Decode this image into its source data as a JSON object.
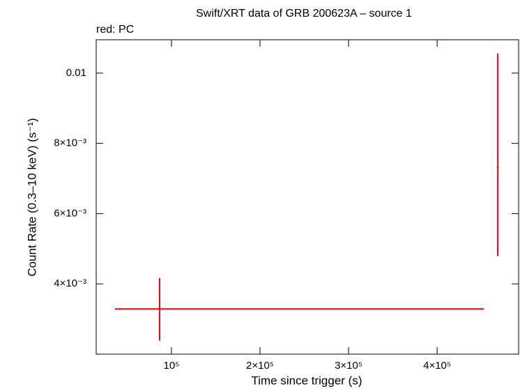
{
  "chart_data": {
    "type": "errorbar",
    "title": "Swift/XRT data of GRB 200623A – source 1",
    "annotation": "red: PC",
    "x_label": "Time since trigger (s)",
    "y_label": "Count Rate (0.3–10 keV) (s⁻¹)",
    "xlim": [
      15000,
      492000
    ],
    "ylim": [
      0.002,
      0.01095
    ],
    "xticks": [
      {
        "value": 100000,
        "label": "10⁵"
      },
      {
        "value": 200000,
        "label": "2×10⁵"
      },
      {
        "value": 300000,
        "label": "3×10⁵"
      },
      {
        "value": 400000,
        "label": "4×10⁵"
      }
    ],
    "yticks": [
      {
        "value": 0.004,
        "label": "4×10⁻³"
      },
      {
        "value": 0.006,
        "label": "6×10⁻³"
      },
      {
        "value": 0.008,
        "label": "8×10⁻³"
      },
      0.01
    ],
    "series": [
      {
        "name": "PC",
        "color": "#e8000b",
        "x": [
          86600,
          468500
        ],
        "x_err_minus": [
          50400,
          1000
        ],
        "x_err_plus": [
          366200,
          1000
        ],
        "values": [
          0.003285,
          0.00732
        ],
        "y_err_minus": [
          0.0009,
          0.00253
        ],
        "y_err_plus": [
          0.00088,
          0.00324
        ]
      }
    ]
  }
}
